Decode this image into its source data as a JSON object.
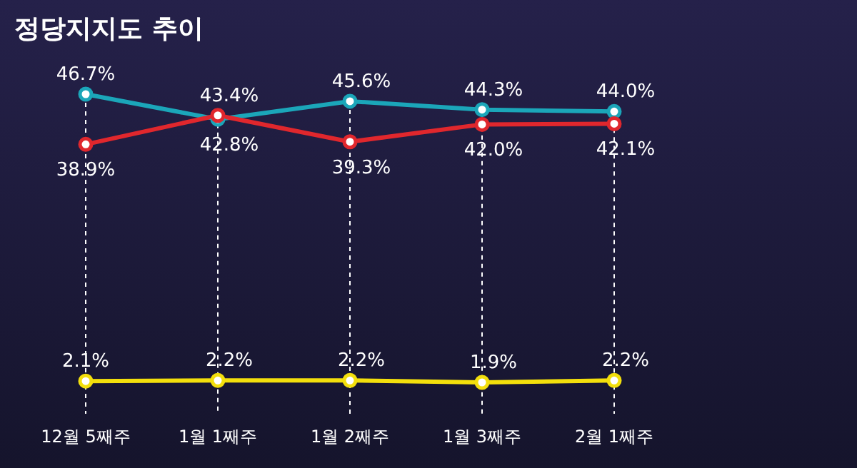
{
  "chart_data": {
    "type": "line",
    "title": "정당지지도 추이",
    "categories": [
      "12월 5째주",
      "1월 1째주",
      "1월 2째주",
      "1월 3째주",
      "2월 1째주"
    ],
    "series": [
      {
        "color": "#1ba6b9",
        "values": [
          46.7,
          42.8,
          45.6,
          44.3,
          44.0
        ],
        "value_labels": [
          "46.7%",
          "42.8%",
          "45.6%",
          "44.3%",
          "44.0%"
        ]
      },
      {
        "color": "#e0272d",
        "values": [
          38.9,
          43.4,
          39.3,
          42.0,
          42.1
        ],
        "value_labels": [
          "38.9%",
          "43.4%",
          "39.3%",
          "42.0%",
          "42.1%"
        ]
      },
      {
        "color": "#f3df0c",
        "values": [
          2.1,
          2.2,
          2.2,
          1.9,
          2.2
        ],
        "value_labels": [
          "2.1%",
          "2.2%",
          "2.2%",
          "1.9%",
          "2.2%"
        ]
      }
    ],
    "marker": "circle",
    "line_style": "solid",
    "ref_lines": [
      {
        "axis": "x",
        "value": "12월 5째주",
        "color": "#ffffff",
        "line_style": "dashed"
      },
      {
        "axis": "x",
        "value": "1월 1째주",
        "color": "#ffffff",
        "line_style": "dashed"
      },
      {
        "axis": "x",
        "value": "1월 2째주",
        "color": "#ffffff",
        "line_style": "dashed"
      },
      {
        "axis": "x",
        "value": "1월 3째주",
        "color": "#ffffff",
        "line_style": "dashed"
      },
      {
        "axis": "x",
        "value": "2월 1째주",
        "color": "#ffffff",
        "line_style": "dashed"
      }
    ]
  }
}
